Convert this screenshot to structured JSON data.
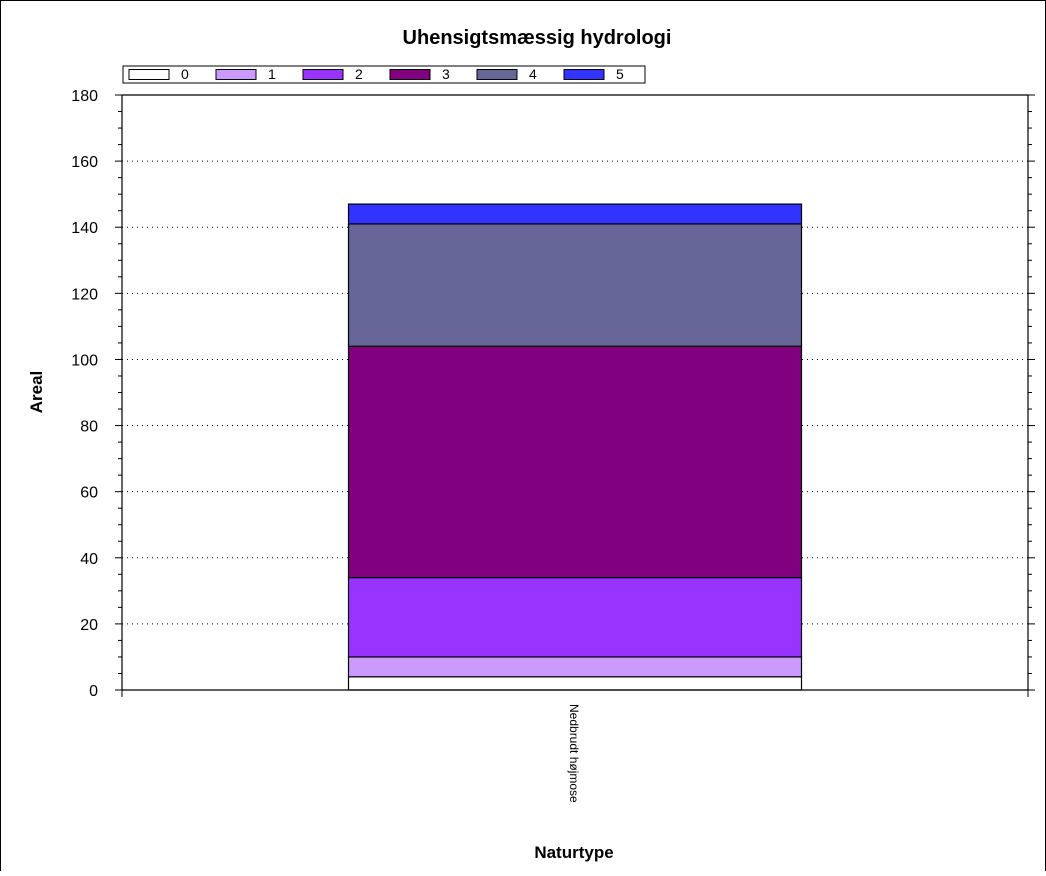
{
  "chart_data": {
    "type": "bar",
    "stacked": true,
    "title": "Uhensigtsmæssig hydrologi",
    "xlabel": "Naturtype",
    "ylabel": "Areal",
    "ylim": [
      0,
      180
    ],
    "yticks": [
      0,
      20,
      40,
      60,
      80,
      100,
      120,
      140,
      160,
      180
    ],
    "grid": true,
    "legend_position": "top",
    "categories": [
      "Nedbrudt højmose"
    ],
    "series": [
      {
        "name": "0",
        "color": "#ffffff",
        "values": [
          4
        ]
      },
      {
        "name": "1",
        "color": "#cc99ff",
        "values": [
          6
        ]
      },
      {
        "name": "2",
        "color": "#9933ff",
        "values": [
          24
        ]
      },
      {
        "name": "3",
        "color": "#800080",
        "values": [
          70
        ]
      },
      {
        "name": "4",
        "color": "#666699",
        "values": [
          37
        ]
      },
      {
        "name": "5",
        "color": "#3333ff",
        "values": [
          6
        ]
      }
    ]
  }
}
